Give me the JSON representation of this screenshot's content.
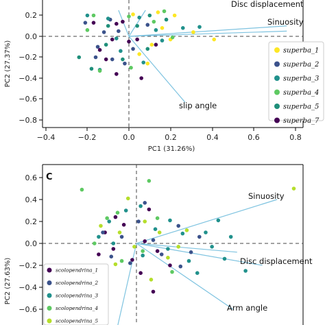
{
  "chart_data": [
    {
      "type": "scatter",
      "panel": "",
      "xlabel": "PC1 (31.26%)",
      "ylabel": "PC2 (27.37%)",
      "xlim": [
        -0.45,
        0.95
      ],
      "ylim": [
        -0.86,
        0.25
      ],
      "xticks": [
        "−0.4",
        "−0.2",
        "0.0",
        "0.2",
        "0.4",
        "0.6",
        "0.8"
      ],
      "yticks": [
        "0.2",
        "0.0",
        "−0.2",
        "−0.4",
        "−0.6",
        "−0.8"
      ],
      "grid": false,
      "legend_position": "right",
      "series": [
        {
          "name": "superba_1",
          "color": "#fde725",
          "points": [
            [
              0.14,
              0.23
            ],
            [
              0.22,
              0.2
            ],
            [
              0.16,
              0.08
            ],
            [
              0.41,
              -0.03
            ],
            [
              0.31,
              0.04
            ],
            [
              0.05,
              -0.17
            ],
            [
              0.09,
              -0.26
            ],
            [
              0.11,
              -0.08
            ],
            [
              0.2,
              -0.03
            ],
            [
              0.02,
              0.21
            ]
          ]
        },
        {
          "name": "superba_2",
          "color": "#3b528b",
          "points": [
            [
              -0.21,
              0.13
            ],
            [
              -0.12,
              0.04
            ],
            [
              -0.15,
              -0.1
            ],
            [
              -0.05,
              0.05
            ],
            [
              -0.08,
              -0.22
            ],
            [
              0.02,
              -0.12
            ],
            [
              -0.16,
              -0.2
            ],
            [
              0.09,
              0.11
            ],
            [
              -0.09,
              0.16
            ],
            [
              -0.02,
              -0.26
            ]
          ]
        },
        {
          "name": "superba_3",
          "color": "#21918c",
          "points": [
            [
              -0.2,
              0.2
            ],
            [
              -0.1,
              0.17
            ],
            [
              -0.06,
              -0.02
            ],
            [
              0.13,
              0.06
            ],
            [
              0.05,
              0.18
            ],
            [
              -0.14,
              -0.32
            ],
            [
              0.07,
              -0.25
            ],
            [
              0.16,
              -0.04
            ],
            [
              -0.04,
              -0.14
            ],
            [
              0.26,
              0.08
            ],
            [
              0.34,
              0.09
            ]
          ]
        },
        {
          "name": "superba_4",
          "color": "#5ec962",
          "points": [
            [
              -0.2,
              0.06
            ],
            [
              -0.17,
              0.2
            ],
            [
              0.0,
              0.19
            ],
            [
              0.17,
              0.24
            ],
            [
              0.21,
              -0.01
            ],
            [
              -0.14,
              -0.33
            ],
            [
              0.01,
              -0.3
            ],
            [
              0.12,
              0.14
            ]
          ]
        },
        {
          "name": "superba_5",
          "color": "#1f8f7a",
          "points": [
            [
              -0.24,
              -0.2
            ],
            [
              -0.18,
              -0.31
            ],
            [
              -0.03,
              -0.22
            ],
            [
              0.09,
              -0.12
            ],
            [
              -0.11,
              -0.08
            ],
            [
              0.04,
              0.1
            ],
            [
              -0.1,
              0.1
            ],
            [
              0.1,
              0.2
            ],
            [
              0.18,
              0.16
            ]
          ]
        },
        {
          "name": "superba_7",
          "color": "#440154",
          "points": [
            [
              -0.17,
              0.13
            ],
            [
              -0.06,
              0.12
            ],
            [
              -0.08,
              -0.03
            ],
            [
              -0.06,
              -0.36
            ],
            [
              0.0,
              -0.05
            ],
            [
              -0.14,
              -0.13
            ],
            [
              0.04,
              -0.03
            ],
            [
              0.06,
              -0.4
            ],
            [
              0.13,
              -0.08
            ],
            [
              -0.11,
              -0.22
            ],
            [
              -0.03,
              0.14
            ]
          ]
        }
      ],
      "loadings": [
        {
          "label": "Disc displacement",
          "x": 0.76,
          "y": 0.1
        },
        {
          "label": "Sinuosity",
          "x": 0.76,
          "y": 0.05
        },
        {
          "label": "slip angle",
          "x": 0.27,
          "y": -0.63
        },
        {
          "label": "",
          "x": -0.05,
          "y": 0.25
        },
        {
          "label": "",
          "x": 0.08,
          "y": 0.25
        }
      ]
    },
    {
      "type": "scatter",
      "panel": "C",
      "xlabel": "",
      "ylabel": "PC2 (27.63%)",
      "xlim": [
        -0.45,
        0.95
      ],
      "ylim": [
        -0.86,
        0.7
      ],
      "yticks": [
        "0.6",
        "0.4",
        "0.2",
        "0.0",
        "−0.2",
        "−0.4",
        "−0.6"
      ],
      "grid": false,
      "legend_position": "bottom-left",
      "series": [
        {
          "name": "scolopendrina_1",
          "color": "#440154",
          "points": [
            [
              -0.15,
              0.1
            ],
            [
              -0.11,
              -0.05
            ],
            [
              -0.06,
              0.17
            ],
            [
              -0.02,
              -0.15
            ],
            [
              0.04,
              0.02
            ],
            [
              -0.18,
              -0.1
            ],
            [
              0.06,
              0.31
            ],
            [
              0.1,
              -0.07
            ],
            [
              0.16,
              -0.2
            ],
            [
              -0.1,
              0.24
            ],
            [
              0.02,
              -0.27
            ],
            [
              0.08,
              -0.44
            ]
          ]
        },
        {
          "name": "scolopendrina_2",
          "color": "#3b528b",
          "points": [
            [
              -0.16,
              0.1
            ],
            [
              -0.07,
              0.06
            ],
            [
              -0.03,
              -0.18
            ],
            [
              0.01,
              0.2
            ],
            [
              0.08,
              0.03
            ],
            [
              0.12,
              -0.1
            ],
            [
              0.2,
              0.16
            ],
            [
              0.26,
              -0.08
            ],
            [
              0.3,
              0.06
            ],
            [
              -0.12,
              -0.12
            ],
            [
              0.04,
              0.37
            ],
            [
              0.21,
              -0.21
            ]
          ]
        },
        {
          "name": "scolopendrina_3",
          "color": "#21918c",
          "points": [
            [
              -0.18,
              0.06
            ],
            [
              -0.11,
              0.0
            ],
            [
              -0.05,
              0.3
            ],
            [
              0.03,
              -0.11
            ],
            [
              0.09,
              0.13
            ],
            [
              0.15,
              -0.05
            ],
            [
              0.22,
              0.09
            ],
            [
              0.25,
              -0.16
            ],
            [
              0.29,
              -0.27
            ],
            [
              0.33,
              0.1
            ],
            [
              0.36,
              -0.03
            ],
            [
              0.42,
              -0.14
            ],
            [
              0.45,
              0.06
            ],
            [
              0.52,
              -0.25
            ],
            [
              -0.13,
              0.2
            ],
            [
              0.02,
              0.34
            ],
            [
              0.16,
              0.21
            ],
            [
              0.39,
              0.21
            ]
          ]
        },
        {
          "name": "scolopendrina_4",
          "color": "#5ec962",
          "points": [
            [
              -0.26,
              0.49
            ],
            [
              -0.2,
              0.0
            ],
            [
              -0.14,
              0.23
            ],
            [
              -0.07,
              -0.16
            ],
            [
              0.03,
              -0.07
            ],
            [
              0.1,
              0.23
            ],
            [
              0.17,
              -0.26
            ],
            [
              0.06,
              0.57
            ],
            [
              -0.09,
              0.28
            ]
          ]
        },
        {
          "name": "scolopendrina_5",
          "color": "#b5de2b",
          "points": [
            [
              -0.17,
              0.16
            ],
            [
              -0.08,
              0.1
            ],
            [
              -0.01,
              -0.03
            ],
            [
              -0.1,
              -0.19
            ],
            [
              0.07,
              -0.33
            ],
            [
              0.11,
              0.1
            ],
            [
              0.2,
              -0.03
            ],
            [
              0.15,
              -0.13
            ],
            [
              0.75,
              0.5
            ],
            [
              -0.04,
              0.41
            ],
            [
              0.04,
              0.2
            ],
            [
              0.24,
              0.12
            ]
          ]
        }
      ],
      "loadings": [
        {
          "label": "Sinuosity",
          "x": 0.67,
          "y": 0.4
        },
        {
          "label": "Disc displacement",
          "x": 0.6,
          "y": -0.2
        },
        {
          "label": "Arm angle",
          "x": 0.46,
          "y": -0.6
        },
        {
          "label": "",
          "x": 0.48,
          "y": -0.08
        },
        {
          "label": "",
          "x": -0.1,
          "y": -0.84
        }
      ]
    }
  ]
}
